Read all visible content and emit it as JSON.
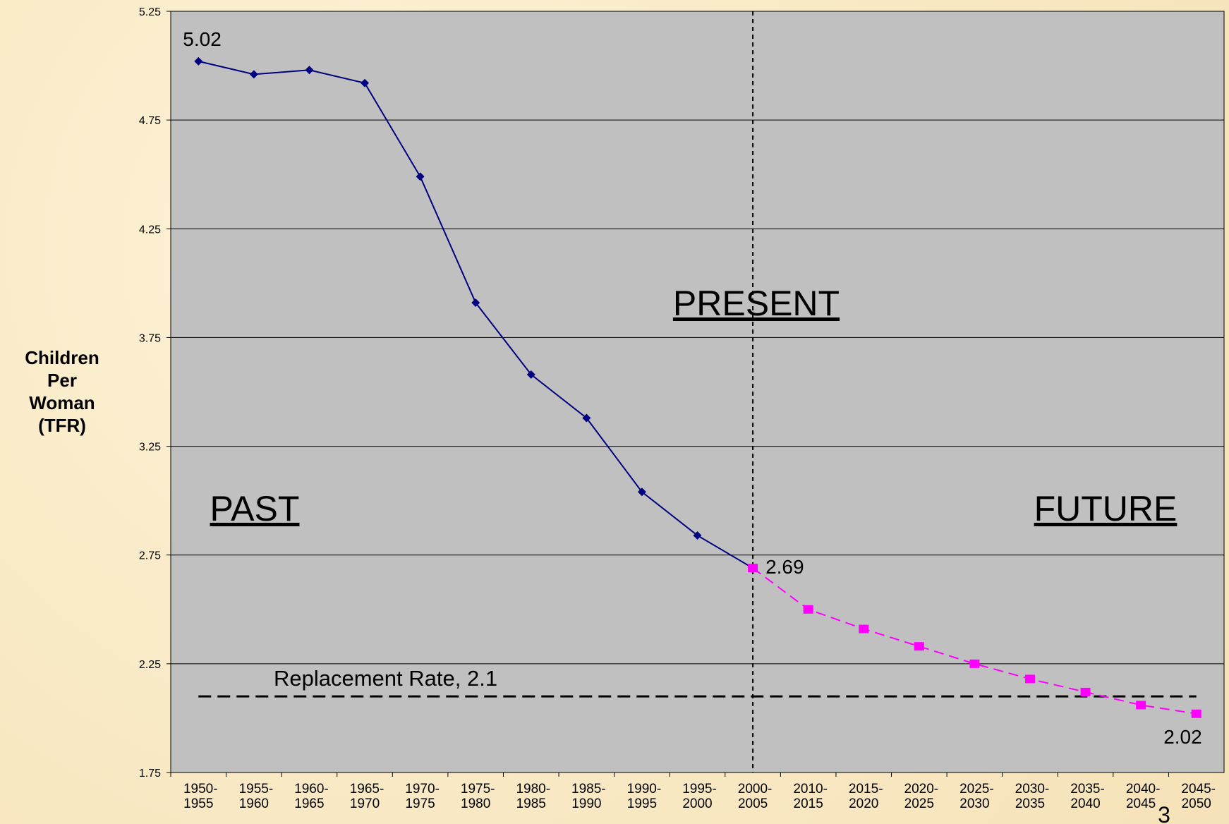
{
  "chart_data": {
    "type": "line",
    "y_label": "Children Per Woman (TFR)",
    "categories": [
      "1950-1955",
      "1955-1960",
      "1960-1965",
      "1965-1970",
      "1970-1975",
      "1975-1980",
      "1980-1985",
      "1985-1990",
      "1990-1995",
      "1995-2000",
      "2000-2005",
      "2010-2015",
      "2015-2020",
      "2020-2025",
      "2025-2030",
      "2030-2035",
      "2035-2040",
      "2040-2045",
      "2045-2050"
    ],
    "series": [
      {
        "color": "#000080",
        "marker": "diamond",
        "dashed": false,
        "values": [
          5.02,
          4.96,
          4.98,
          4.92,
          4.49,
          3.91,
          3.58,
          3.38,
          3.04,
          2.84,
          2.69,
          null,
          null,
          null,
          null,
          null,
          null,
          null,
          null
        ]
      },
      {
        "color": "#ff00ff",
        "marker": "square",
        "dashed": true,
        "values": [
          null,
          null,
          null,
          null,
          null,
          null,
          null,
          null,
          null,
          null,
          2.69,
          2.5,
          2.41,
          2.33,
          2.25,
          2.18,
          2.12,
          2.06,
          2.02
        ]
      }
    ],
    "labeled_points": [
      [
        0,
        0
      ],
      [
        1,
        10
      ],
      [
        1,
        18
      ]
    ],
    "ylim": [
      1.75,
      5.25
    ],
    "yticks": [
      1.75,
      2.25,
      2.75,
      3.25,
      3.75,
      4.25,
      4.75,
      5.25
    ],
    "grid": true,
    "reference_line": {
      "value": 2.1,
      "label": "Replacement Rate, 2.1"
    },
    "vertical_line_at": "2000-2005",
    "annotations": [
      "PAST",
      "PRESENT",
      "FUTURE"
    ],
    "page_number": "3"
  }
}
